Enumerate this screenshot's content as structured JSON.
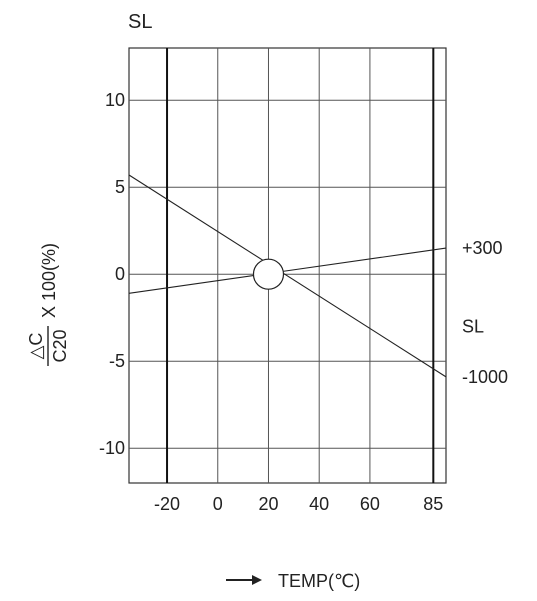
{
  "chart_data": {
    "type": "line",
    "title": "SL",
    "xlabel": "TEMP(℃)",
    "ylabel_numerator": "△C",
    "ylabel_denominator": "C20",
    "ylabel_suffix": "X 100(%)",
    "x_tick_labels": [
      {
        "value": -20,
        "label": "-20"
      },
      {
        "value": 0,
        "label": "0"
      },
      {
        "value": 20,
        "label": "20"
      },
      {
        "value": 40,
        "label": "40"
      },
      {
        "value": 60,
        "label": "60"
      },
      {
        "value": 85,
        "label": "85"
      }
    ],
    "y_ticks": [
      10,
      5,
      0,
      -5,
      -10
    ],
    "xlim": [
      -35,
      90
    ],
    "ylim": [
      -12,
      13
    ],
    "grid": true,
    "bold_vertical_lines": [
      -20,
      85
    ],
    "reference_point": {
      "x": 20,
      "y": 0
    },
    "series": [
      {
        "name": "+300",
        "x": [
          -35,
          90
        ],
        "y": [
          -1.1,
          1.5
        ]
      },
      {
        "name": "-1000",
        "x": [
          -35,
          90
        ],
        "y": [
          5.7,
          -5.9
        ]
      }
    ],
    "annotations": [
      {
        "text": "SL",
        "x": 90,
        "y": -3
      }
    ]
  }
}
